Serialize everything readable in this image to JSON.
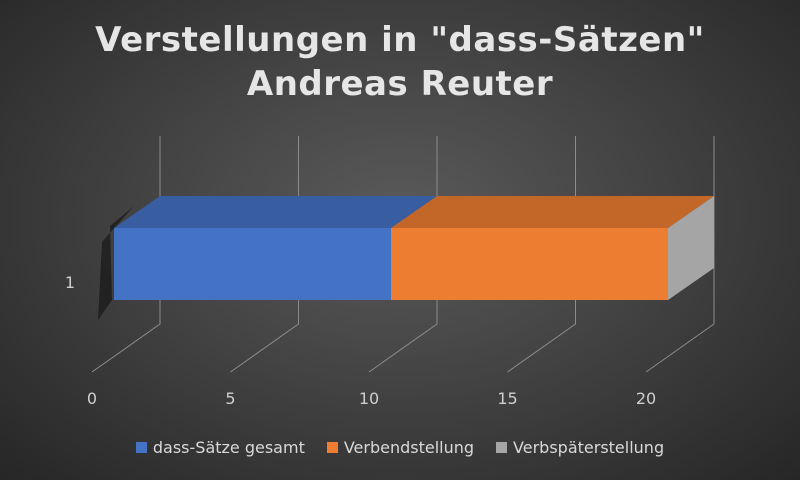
{
  "chart_data": {
    "type": "bar",
    "orientation": "horizontal",
    "stacked": true,
    "three_d": true,
    "title": "Verstellungen in \"dass-Sätzen\"",
    "subtitle": "Andreas Reuter",
    "categories": [
      "1"
    ],
    "series": [
      {
        "name": "dass-Sätze gesamt",
        "values": [
          10
        ],
        "color": "#4472c4"
      },
      {
        "name": "Verbendstellung",
        "values": [
          10
        ],
        "color": "#ed7d31"
      },
      {
        "name": "Verbspäterstellung",
        "values": [
          0
        ],
        "color": "#a5a5a5"
      }
    ],
    "x_ticks": [
      "0",
      "5",
      "10",
      "15",
      "20"
    ],
    "xlim": [
      0,
      20
    ],
    "grid": true,
    "legend_position": "bottom"
  }
}
